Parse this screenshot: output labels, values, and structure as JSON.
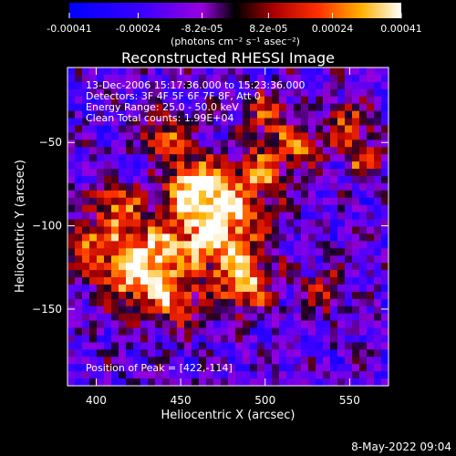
{
  "chart_data": {
    "type": "heatmap",
    "title": "Reconstructed RHESSI Image",
    "xlabel": "Heliocentric X (arcsec)",
    "ylabel": "Heliocentric Y (arcsec)",
    "xlim": [
      383,
      573
    ],
    "ylim": [
      -196,
      -5
    ],
    "x_ticks": [
      400,
      450,
      500,
      550
    ],
    "y_ticks": [
      -50,
      -100,
      -150
    ],
    "colorbar": {
      "min": -0.00041,
      "max": 0.00041,
      "ticks": [
        -0.00041,
        -0.00024,
        -8.2e-05,
        8.2e-05,
        0.00024,
        0.00041
      ],
      "tick_labels": [
        "-0.00041",
        "-0.00024",
        "-8.2e-05",
        "8.2e-05",
        "0.00024",
        "0.00041"
      ],
      "units": "(photons cm⁻² s⁻¹ asec⁻²)"
    },
    "annotations": [
      "13-Dec-2006 15:17:36.000 to 15:23:36.000",
      "Detectors: 3F 4F 5F 6F 7F 8F, Att 0",
      "Energy Range: 25.0 - 50.0 keV",
      "Clean     Total counts: 1.99E+04"
    ],
    "peak_label": "Position of Peak = [422,-114]",
    "peak": [
      422,
      -114
    ]
  },
  "footer": {
    "date": "8-May-2022 09:04"
  }
}
